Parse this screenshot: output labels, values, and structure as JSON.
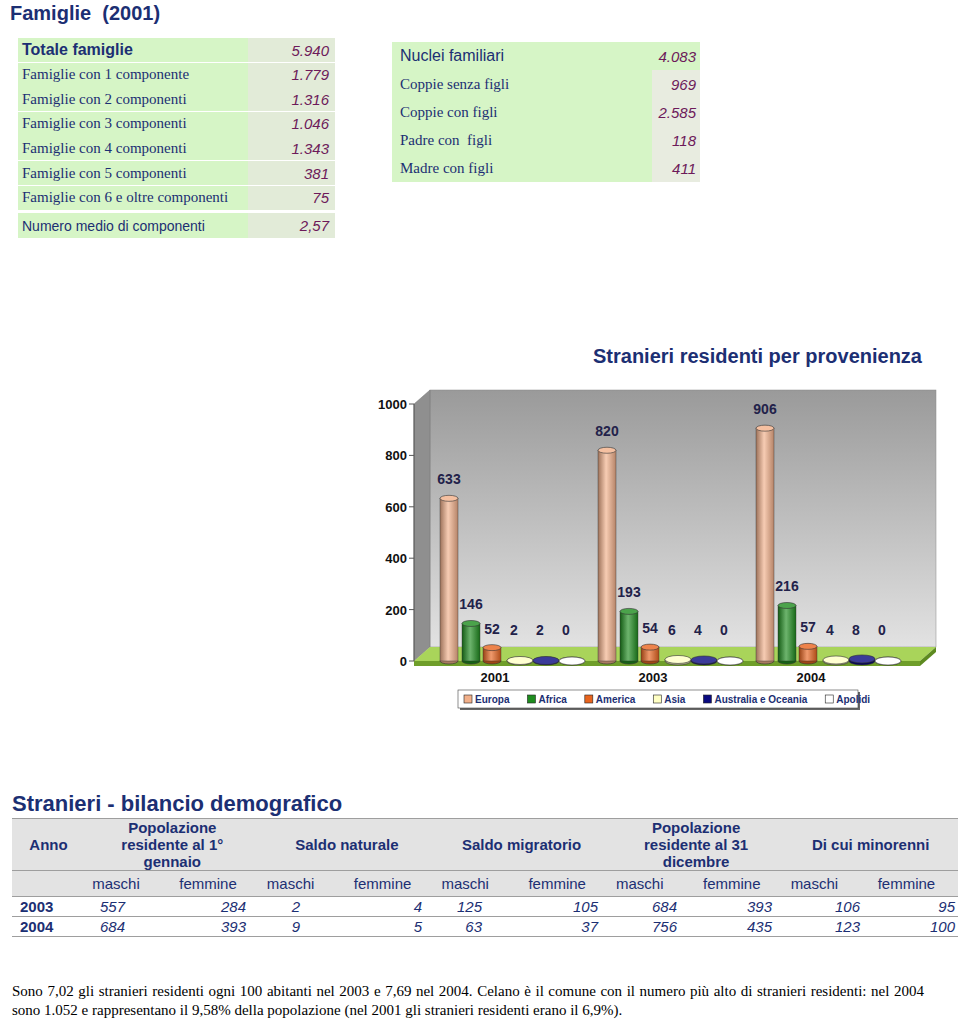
{
  "title": "Famiglie  (2001)",
  "families": {
    "rows": [
      {
        "label": "Totale famiglie",
        "value": "5.940"
      },
      {
        "label": "Famiglie con 1 componente",
        "value": "1.779"
      },
      {
        "label": "Famiglie con 2 componenti",
        "value": "1.316"
      },
      {
        "label": "Famiglie con 3 componenti",
        "value": "1.046"
      },
      {
        "label": "Famiglie con 4 componenti",
        "value": "1.343"
      },
      {
        "label": "Famiglie con 5 componenti",
        "value": "381"
      },
      {
        "label": "Famiglie con 6 e oltre componenti",
        "value": "75"
      }
    ],
    "average": {
      "label": "Numero medio di componenti",
      "value": "2,57"
    }
  },
  "nuclei": {
    "header": {
      "label": "Nuclei familiari",
      "value": "4.083"
    },
    "rows": [
      {
        "label": "Coppie senza figli",
        "value": "969"
      },
      {
        "label": "Coppie con figli",
        "value": "2.585"
      },
      {
        "label": "Padre con  figli",
        "value": "118"
      },
      {
        "label": "Madre con figli",
        "value": "411"
      }
    ]
  },
  "chart_data": {
    "type": "bar",
    "title": "Stranieri residenti per provenienza",
    "categories": [
      "2001",
      "2003",
      "2004"
    ],
    "series": [
      {
        "name": "Europa",
        "color": "#f2b08a",
        "values": [
          633,
          820,
          906
        ]
      },
      {
        "name": "Africa",
        "color": "#1e8c1e",
        "values": [
          146,
          193,
          216
        ]
      },
      {
        "name": "America",
        "color": "#e8641e",
        "values": [
          52,
          54,
          57
        ]
      },
      {
        "name": "Asia",
        "color": "#ffffc4",
        "values": [
          2,
          6,
          4
        ]
      },
      {
        "name": "Australia e Oceania",
        "color": "#0a0a80",
        "values": [
          2,
          4,
          8
        ]
      },
      {
        "name": "Apolidi",
        "color": "#ffffff",
        "values": [
          0,
          0,
          0
        ]
      }
    ],
    "ylim": [
      0,
      1000
    ],
    "yticks": [
      0,
      200,
      400,
      600,
      800,
      1000
    ],
    "grid": false,
    "legend": "bottom",
    "data_labels": true
  },
  "balance": {
    "title": "Stranieri - bilancio demografico",
    "headers": [
      "Anno",
      "Popolazione residente al 1° gennaio",
      "Saldo naturale",
      "Saldo migratorio",
      "Popolazione residente al 31 dicembre",
      "Di cui minorenni"
    ],
    "subheaders": [
      "maschi",
      "femmine"
    ],
    "rows": [
      {
        "year": "2003",
        "values": [
          557,
          284,
          2,
          4,
          125,
          105,
          684,
          393,
          106,
          95
        ]
      },
      {
        "year": "2004",
        "values": [
          684,
          393,
          9,
          5,
          63,
          37,
          756,
          435,
          123,
          100
        ]
      }
    ]
  },
  "footnote": "Sono 7,02 gli stranieri residenti ogni 100 abitanti nel 2003 e 7,69 nel 2004. Celano è il comune con il numero più alto di stranieri residenti: nel 2004 sono 1.052 e rappresentano il 9,58% della popolazione (nel 2001 gli stranieri residenti erano il 6,9%)."
}
